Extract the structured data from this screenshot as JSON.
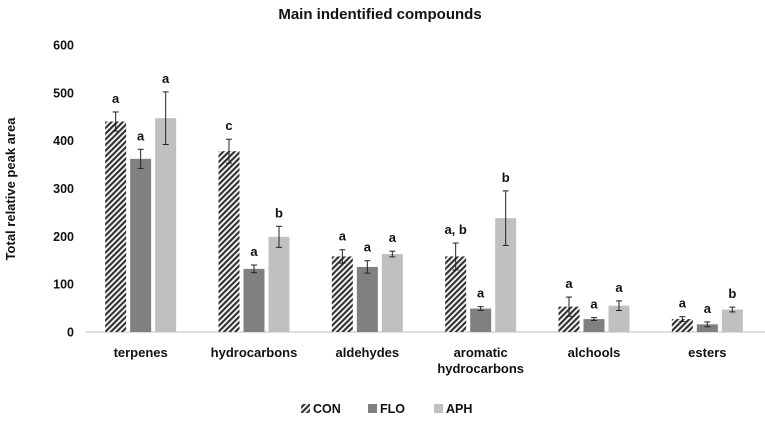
{
  "chart_data": {
    "type": "bar",
    "title": "Main indentified compounds",
    "ylabel": "Total relative peak area",
    "xlabel": "",
    "ylim": [
      0,
      600
    ],
    "yticks": [
      0,
      100,
      200,
      300,
      400,
      500,
      600
    ],
    "grid": false,
    "legend_position": "bottom",
    "categories": [
      "terpenes",
      "hydrocarbons",
      "aldehydes",
      [
        "aromatic",
        "hydrocarbons"
      ],
      "alchools",
      "esters"
    ],
    "series": [
      {
        "name": "CON",
        "pattern": "diagonal-hatch",
        "color": "#3a3a3a",
        "values": [
          440,
          378,
          158,
          158,
          53,
          27
        ],
        "errors": [
          20,
          25,
          14,
          28,
          20,
          5
        ],
        "labels": [
          "a",
          "c",
          "a",
          "a, b",
          "a",
          "a"
        ]
      },
      {
        "name": "FLO",
        "color": "#808080",
        "values": [
          362,
          132,
          136,
          49,
          27,
          16
        ],
        "errors": [
          20,
          8,
          13,
          4,
          3,
          5
        ],
        "labels": [
          "a",
          "a",
          "a",
          "a",
          "a",
          "a"
        ]
      },
      {
        "name": "APH",
        "color": "#c0c0c0",
        "values": [
          447,
          199,
          163,
          238,
          55,
          47
        ],
        "errors": [
          55,
          22,
          6,
          57,
          10,
          5
        ],
        "labels": [
          "a",
          "b",
          "a",
          "b",
          "a",
          "b"
        ]
      }
    ]
  }
}
